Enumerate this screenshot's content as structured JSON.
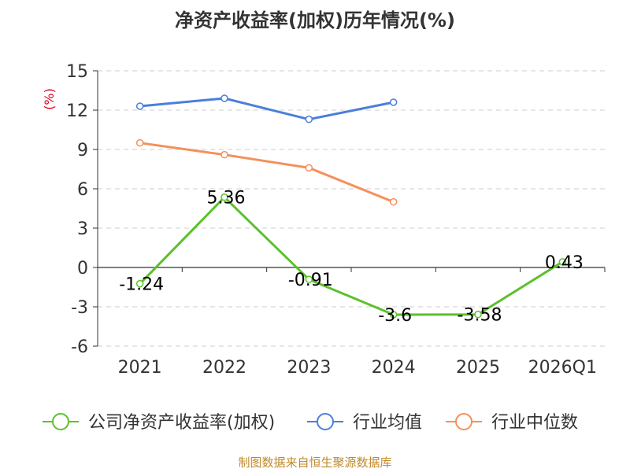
{
  "colors": {
    "company": "#5cc12b",
    "industry_avg": "#4a7fdb",
    "industry_median": "#f5905a",
    "grid": "#cccccc",
    "axis": "#333333",
    "source": "#c08a2b",
    "ylabel": "#d9001b"
  },
  "chart_data": {
    "type": "line",
    "title": "净资产收益率(加权)历年情况(%)",
    "ylabel": "(%)",
    "xlabel": "",
    "categories": [
      "2021",
      "2022",
      "2023",
      "2024",
      "2025",
      "2026Q1"
    ],
    "yticks": [
      15,
      12,
      9,
      6,
      3,
      0,
      -3,
      -6
    ],
    "ylim": [
      -6,
      15
    ],
    "grid": true,
    "legend_position": "bottom",
    "series": [
      {
        "name": "公司净资产收益率(加权)",
        "values": [
          -1.24,
          5.36,
          -0.91,
          -3.6,
          -3.58,
          0.43
        ],
        "labels": [
          "-1.24",
          "5.36",
          "-0.91",
          "-3.6",
          "-3.58",
          "0.43"
        ],
        "color_key": "company",
        "show_labels": true
      },
      {
        "name": "行业均值",
        "values": [
          12.3,
          12.9,
          11.3,
          12.6,
          null,
          null
        ],
        "color_key": "industry_avg",
        "show_labels": false
      },
      {
        "name": "行业中位数",
        "values": [
          9.5,
          8.6,
          7.6,
          5.0,
          null,
          null
        ],
        "color_key": "industry_median",
        "show_labels": false
      }
    ]
  },
  "footer": {
    "source": "制图数据来自恒生聚源数据库"
  }
}
